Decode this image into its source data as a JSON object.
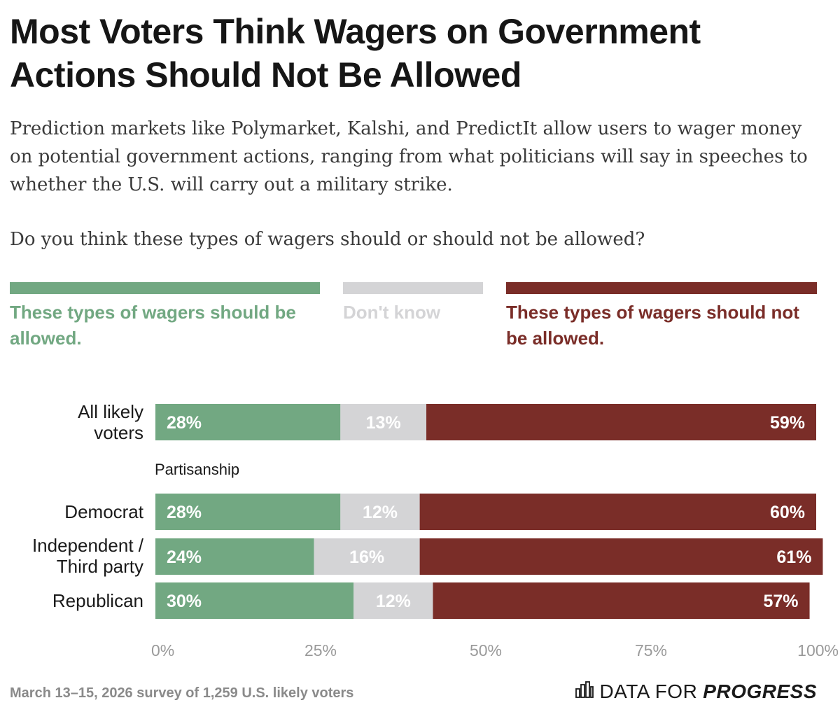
{
  "title": "Most Voters Think Wagers on Government Actions Should Not Be Allowed",
  "subtitle": "Prediction markets like Polymarket, Kalshi, and PredictIt allow users to wager money on potential government actions, ranging from what politicians will say in speeches to whether the U.S. will carry out a military strike.",
  "question": "Do you think these types of wagers should or should not be allowed?",
  "legend": [
    {
      "label": "These types of wagers should be allowed.",
      "color": "#72a882"
    },
    {
      "label": "Don't know",
      "color": "#d4d4d6"
    },
    {
      "label": "These types of wagers should not be allowed.",
      "color": "#7a2d28"
    }
  ],
  "group_label": "Partisanship",
  "footer": {
    "note": "March 13–15, 2026 survey of 1,259 U.S. likely voters",
    "brand_regular": "DATA FOR",
    "brand_bold": "PROGRESS"
  },
  "chart_data": {
    "type": "bar",
    "orientation": "horizontal",
    "stacked": true,
    "categories": [
      "All likely voters",
      "Democrat",
      "Independent / Third party",
      "Republican"
    ],
    "series": [
      {
        "name": "These types of wagers should be allowed.",
        "values": [
          28,
          28,
          24,
          30
        ],
        "labels": [
          "28%",
          "28%",
          "24%",
          "30%"
        ],
        "color": "#72a882",
        "label_color": "#ffffff"
      },
      {
        "name": "Don't know",
        "values": [
          13,
          12,
          16,
          12
        ],
        "labels": [
          "13%",
          "12%",
          "16%",
          "12%"
        ],
        "color": "#d4d4d6",
        "label_color": "#ffffff"
      },
      {
        "name": "These types of wagers should not be allowed.",
        "values": [
          59,
          60,
          61,
          57
        ],
        "labels": [
          "59%",
          "60%",
          "61%",
          "57%"
        ],
        "color": "#7a2d28",
        "label_color": "#ffffff"
      }
    ],
    "x_ticks": [
      "0%",
      "25%",
      "50%",
      "75%",
      "100%"
    ],
    "xlim": [
      0,
      100
    ],
    "grid": false,
    "legend_position": "top"
  }
}
